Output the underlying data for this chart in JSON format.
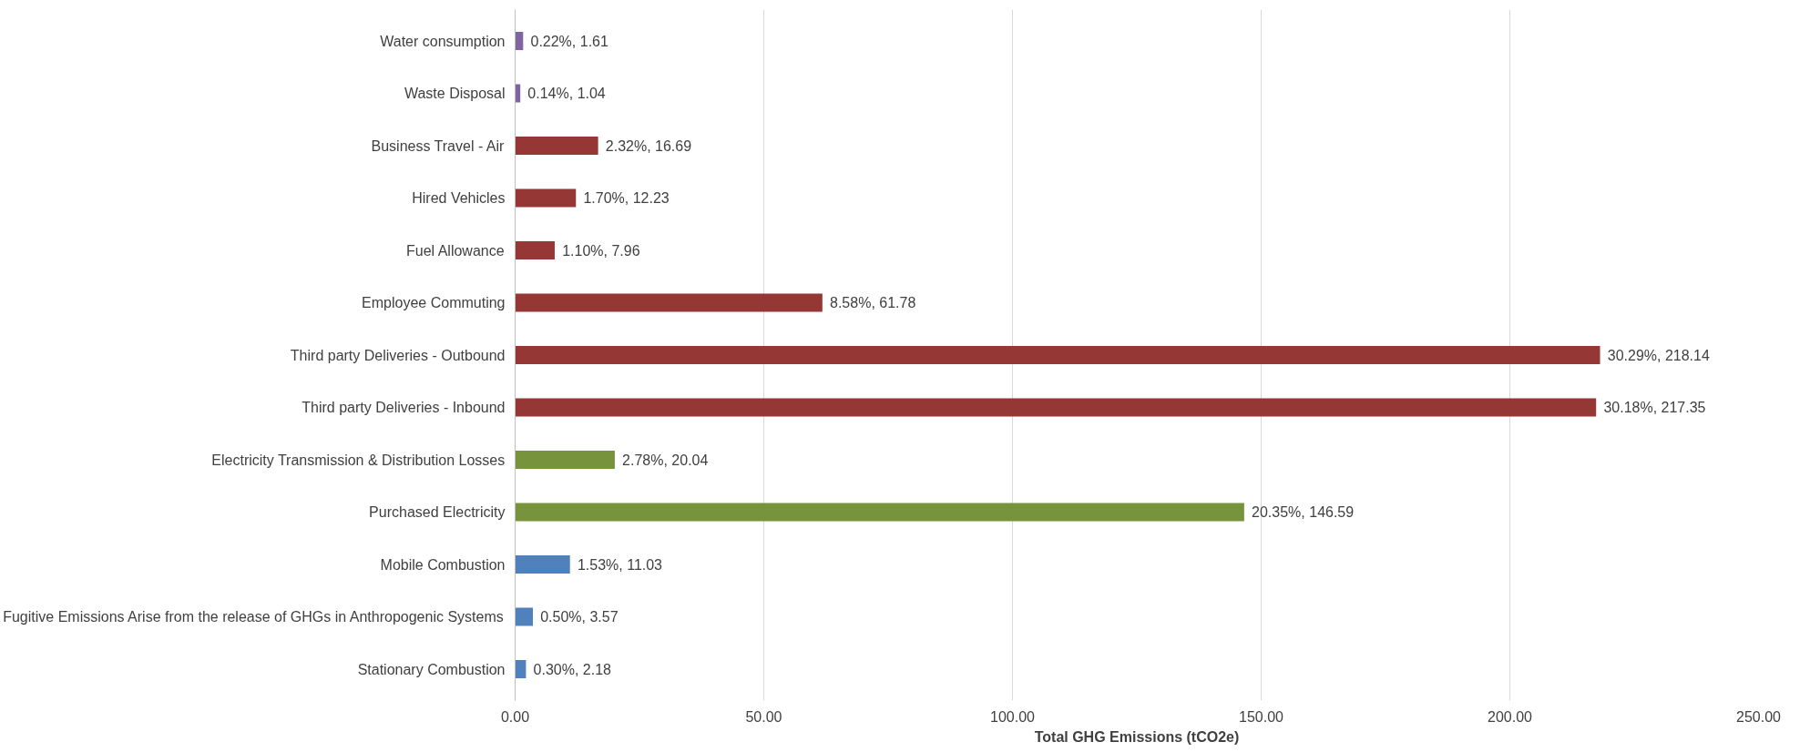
{
  "chart_data": {
    "type": "bar",
    "orientation": "horizontal",
    "xlabel": "Total GHG Emissions (tCO2e)",
    "categories": [
      "Water consumption",
      "Waste Disposal",
      "Business Travel - Air",
      "Hired Vehicles",
      "Fuel Allowance",
      "Employee Commuting",
      "Third party Deliveries - Outbound",
      "Third party Deliveries - Inbound",
      "Electricity Transmission & Distribution Losses",
      "Purchased Electricity",
      "Mobile Combustion",
      "Fugitive Emissions Arise from the release of GHGs in Anthropogenic Systems",
      "Stationary Combustion"
    ],
    "values": [
      1.61,
      1.04,
      16.69,
      12.23,
      7.96,
      61.78,
      218.14,
      217.35,
      20.04,
      146.59,
      11.03,
      3.57,
      2.18
    ],
    "colors": [
      "#8064a2",
      "#8064a2",
      "#953735",
      "#953735",
      "#953735",
      "#953735",
      "#953735",
      "#953735",
      "#77933c",
      "#77933c",
      "#4f81bd",
      "#4f81bd",
      "#4f81bd"
    ],
    "value_labels": [
      "0.22%, 1.61",
      "0.14%, 1.04",
      "2.32%, 16.69",
      "1.70%, 12.23",
      "1.10%, 7.96",
      "8.58%, 61.78",
      "30.29%, 218.14",
      "30.18%, 217.35",
      "2.78%, 20.04",
      "20.35%, 146.59",
      "1.53%, 11.03",
      "0.50%, 3.57",
      "0.30%, 2.18"
    ],
    "xlim": [
      0,
      250
    ],
    "xticks": [
      {
        "value": 0,
        "label": "0.00"
      },
      {
        "value": 50,
        "label": "50.00"
      },
      {
        "value": 100,
        "label": "100.00"
      },
      {
        "value": 150,
        "label": "150.00"
      },
      {
        "value": 200,
        "label": "200.00"
      },
      {
        "value": 250,
        "label": "250.00"
      }
    ],
    "grid": "x"
  }
}
